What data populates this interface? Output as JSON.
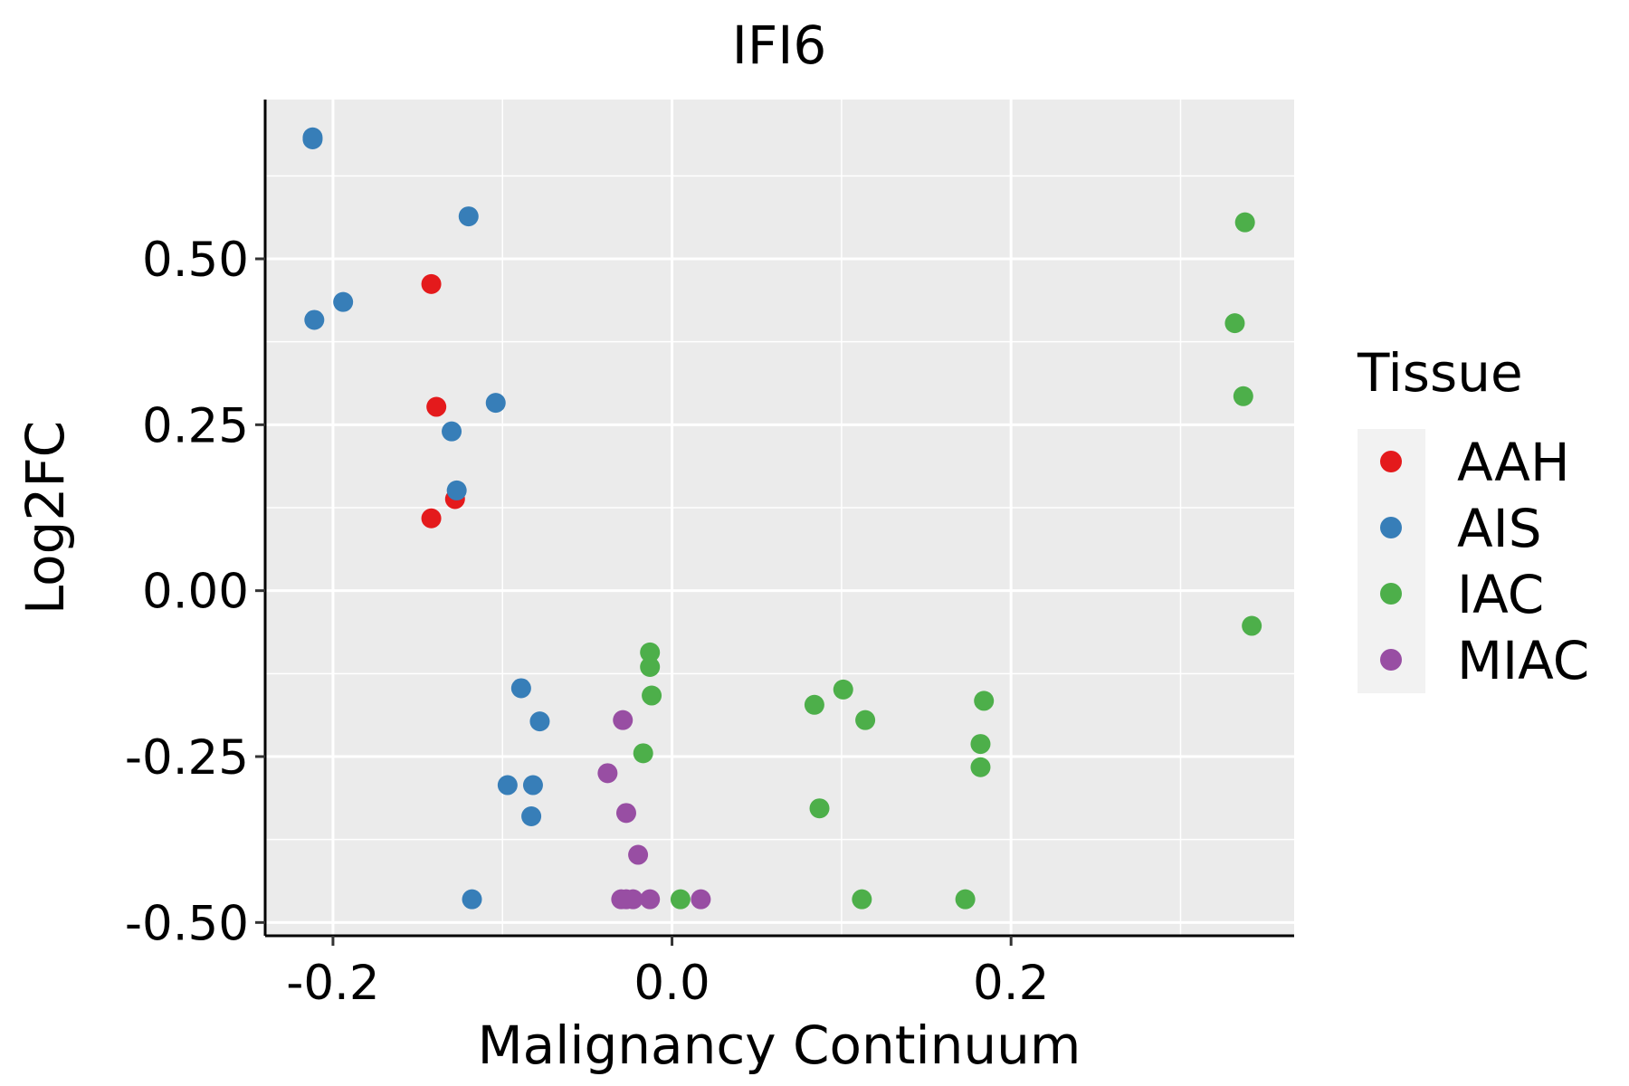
{
  "chart_data": {
    "type": "scatter",
    "title": "IFI6",
    "xlabel": "Malignancy Continuum",
    "ylabel": "Log2FC",
    "xlim": [
      -0.24,
      0.367
    ],
    "ylim": [
      -0.52,
      0.74
    ],
    "xticks": [
      -0.2,
      0.0,
      0.2
    ],
    "xtick_labels": [
      "-0.2",
      "0.0",
      "0.2"
    ],
    "yticks": [
      -0.5,
      -0.25,
      0.0,
      0.25,
      0.5
    ],
    "ytick_labels": [
      "-0.50",
      "-0.25",
      "0.00",
      "0.25",
      "0.50"
    ],
    "grid": true,
    "legend": {
      "title": "Tissue",
      "position": "right",
      "entries": [
        {
          "name": "AAH",
          "color": "#E41A1C"
        },
        {
          "name": "AIS",
          "color": "#377EB8"
        },
        {
          "name": "IAC",
          "color": "#4DAF4A"
        },
        {
          "name": "MIAC",
          "color": "#984EA3"
        }
      ]
    },
    "series": [
      {
        "name": "AAH",
        "color": "#E41A1C",
        "points": [
          [
            -0.142,
            0.462
          ],
          [
            -0.139,
            0.277
          ],
          [
            -0.128,
            0.138
          ],
          [
            -0.142,
            0.109
          ]
        ]
      },
      {
        "name": "AIS",
        "color": "#377EB8",
        "points": [
          [
            -0.212,
            0.683
          ],
          [
            -0.212,
            0.68
          ],
          [
            -0.12,
            0.564
          ],
          [
            -0.194,
            0.435
          ],
          [
            -0.211,
            0.408
          ],
          [
            -0.104,
            0.283
          ],
          [
            -0.13,
            0.24
          ],
          [
            -0.127,
            0.151
          ],
          [
            -0.089,
            -0.147
          ],
          [
            -0.078,
            -0.197
          ],
          [
            -0.097,
            -0.293
          ],
          [
            -0.082,
            -0.293
          ],
          [
            -0.083,
            -0.34
          ],
          [
            -0.118,
            -0.465
          ]
        ]
      },
      {
        "name": "IAC",
        "color": "#4DAF4A",
        "points": [
          [
            0.338,
            0.555
          ],
          [
            0.332,
            0.403
          ],
          [
            0.337,
            0.293
          ],
          [
            0.342,
            -0.053
          ],
          [
            -0.013,
            -0.093
          ],
          [
            -0.013,
            -0.115
          ],
          [
            -0.012,
            -0.158
          ],
          [
            0.101,
            -0.149
          ],
          [
            0.084,
            -0.172
          ],
          [
            0.114,
            -0.195
          ],
          [
            0.184,
            -0.166
          ],
          [
            0.182,
            -0.231
          ],
          [
            0.182,
            -0.266
          ],
          [
            -0.017,
            -0.245
          ],
          [
            0.087,
            -0.328
          ],
          [
            0.005,
            -0.465
          ],
          [
            0.112,
            -0.465
          ],
          [
            0.173,
            -0.465
          ]
        ]
      },
      {
        "name": "MIAC",
        "color": "#984EA3",
        "points": [
          [
            -0.029,
            -0.195
          ],
          [
            -0.038,
            -0.275
          ],
          [
            -0.027,
            -0.335
          ],
          [
            -0.02,
            -0.398
          ],
          [
            -0.03,
            -0.465
          ],
          [
            -0.027,
            -0.465
          ],
          [
            -0.023,
            -0.465
          ],
          [
            -0.013,
            -0.465
          ],
          [
            0.017,
            -0.465
          ]
        ]
      }
    ]
  }
}
